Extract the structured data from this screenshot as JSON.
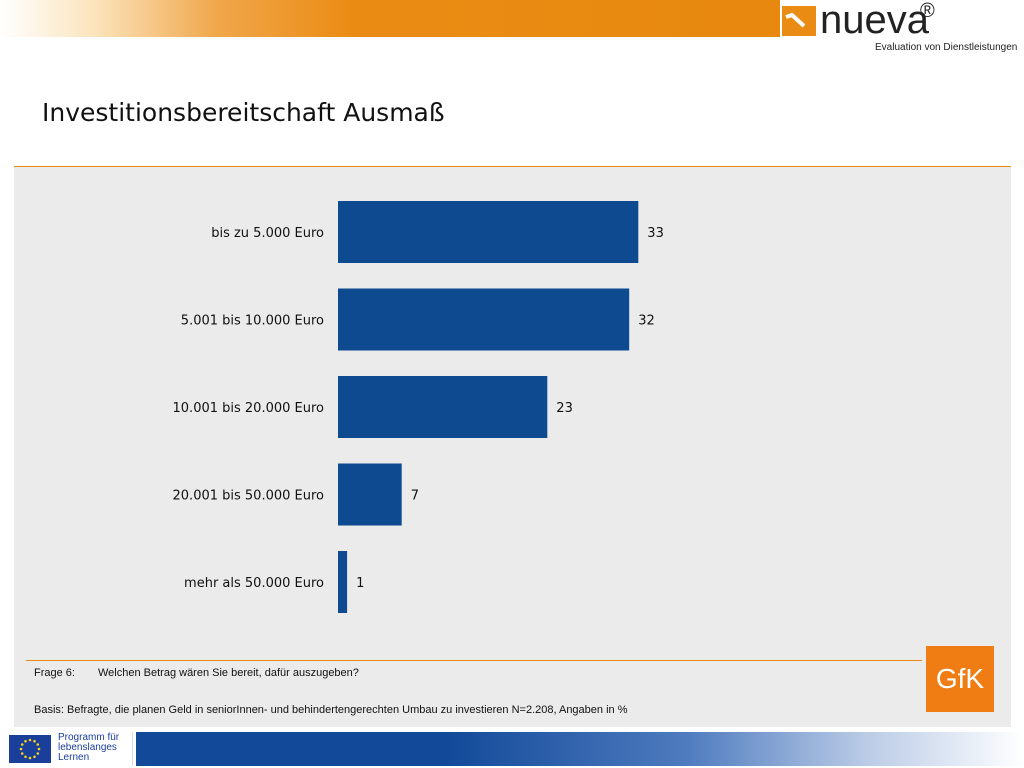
{
  "header": {
    "logo_word": "nueva",
    "logo_reg": "®",
    "logo_subtitle": "Evaluation von Dienstleistungen"
  },
  "title": "Investitionsbereitschaft Ausmaß",
  "chart_data": {
    "type": "bar",
    "orientation": "horizontal",
    "categories": [
      "bis zu 5.000 Euro",
      "5.001 bis 10.000 Euro",
      "10.001 bis 20.000 Euro",
      "20.001 bis 50.000 Euro",
      "mehr als 50.000 Euro"
    ],
    "values": [
      33,
      32,
      23,
      7,
      1
    ],
    "value_labels": [
      "33",
      "32",
      "23",
      "7",
      "1"
    ],
    "xlim": [
      0,
      100
    ],
    "grid": false,
    "legend": "none",
    "bar_color": "#0d4a8f"
  },
  "footer": {
    "frage_label": "Frage 6:",
    "frage_text": "Welchen Betrag wären Sie bereit, dafür auszugeben?",
    "basis_text": "Basis: Befragte, die planen Geld in seniorInnen- und behindertengerechten Umbau zu investieren N=2.208, Angaben in %",
    "gfk_logo": "GfK",
    "eu_program_lines": [
      "Programm für",
      "lebenslanges",
      "Lernen"
    ]
  },
  "colors": {
    "accent_orange": "#e8880e",
    "gfk_orange": "#ef7d13",
    "bar_blue": "#0d4a8f",
    "panel_gray": "#ebebeb"
  }
}
